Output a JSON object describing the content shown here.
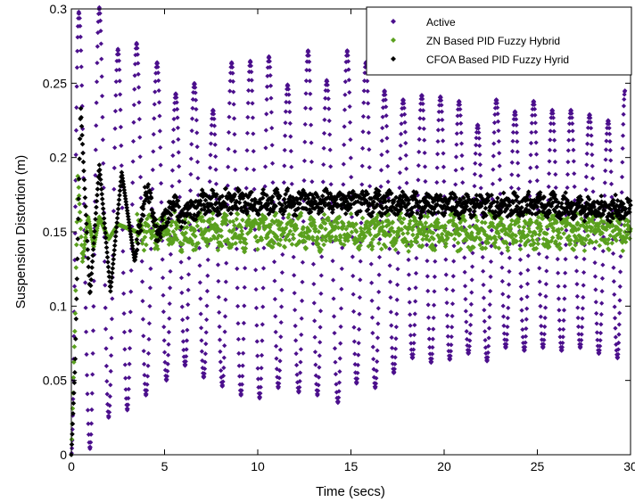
{
  "chart_data": {
    "type": "scatter",
    "title": "",
    "xlabel": "Time (secs)",
    "ylabel": "Suspension Distortion (m)",
    "xlim": [
      0,
      30
    ],
    "ylim": [
      0,
      0.3
    ],
    "xticks": [
      0,
      5,
      10,
      15,
      20,
      25,
      30
    ],
    "yticks": [
      0,
      0.05,
      0.1,
      0.15,
      0.2,
      0.25,
      0.3
    ],
    "xtick_labels": [
      "0",
      "5",
      "10",
      "15",
      "20",
      "25",
      "30"
    ],
    "ytick_labels": [
      "0",
      "0.05",
      "0.1",
      "0.15",
      "0.2",
      "0.25",
      "0.3"
    ],
    "grid": false,
    "legend_position": "top-right",
    "series": [
      {
        "name": "Active",
        "color": "#4b0f8c",
        "marker": "diamond",
        "peaks": [
          [
            0.4,
            0.298
          ],
          [
            1.5,
            0.301
          ],
          [
            2.5,
            0.273
          ],
          [
            3.5,
            0.277
          ],
          [
            4.6,
            0.264
          ],
          [
            5.6,
            0.243
          ],
          [
            6.6,
            0.25
          ],
          [
            7.6,
            0.232
          ],
          [
            8.6,
            0.264
          ],
          [
            9.6,
            0.265
          ],
          [
            10.6,
            0.268
          ],
          [
            11.6,
            0.249
          ],
          [
            12.7,
            0.272
          ],
          [
            13.7,
            0.252
          ],
          [
            14.8,
            0.272
          ],
          [
            15.8,
            0.264
          ],
          [
            16.8,
            0.245
          ],
          [
            17.8,
            0.239
          ],
          [
            18.8,
            0.242
          ],
          [
            19.8,
            0.241
          ],
          [
            20.8,
            0.238
          ],
          [
            21.8,
            0.222
          ],
          [
            22.8,
            0.239
          ],
          [
            23.8,
            0.231
          ],
          [
            24.8,
            0.238
          ],
          [
            25.8,
            0.232
          ],
          [
            26.8,
            0.232
          ],
          [
            27.8,
            0.229
          ],
          [
            28.8,
            0.225
          ],
          [
            29.7,
            0.245
          ]
        ],
        "troughs": [
          [
            0,
            0.0
          ],
          [
            1.0,
            0.004
          ],
          [
            2.0,
            0.025
          ],
          [
            3.0,
            0.03
          ],
          [
            4.0,
            0.04
          ],
          [
            5.1,
            0.05
          ],
          [
            6.1,
            0.06
          ],
          [
            7.1,
            0.052
          ],
          [
            8.1,
            0.046
          ],
          [
            9.1,
            0.04
          ],
          [
            10.1,
            0.038
          ],
          [
            11.1,
            0.045
          ],
          [
            12.2,
            0.042
          ],
          [
            13.2,
            0.04
          ],
          [
            14.3,
            0.035
          ],
          [
            15.3,
            0.048
          ],
          [
            16.3,
            0.045
          ],
          [
            17.3,
            0.055
          ],
          [
            18.3,
            0.065
          ],
          [
            19.3,
            0.062
          ],
          [
            20.3,
            0.064
          ],
          [
            21.3,
            0.068
          ],
          [
            22.3,
            0.063
          ],
          [
            23.3,
            0.072
          ],
          [
            24.3,
            0.07
          ],
          [
            25.3,
            0.072
          ],
          [
            26.3,
            0.07
          ],
          [
            27.3,
            0.072
          ],
          [
            28.3,
            0.068
          ],
          [
            29.3,
            0.065
          ]
        ]
      },
      {
        "name": "ZN Based PID Fuzzy Hybrid",
        "color": "#5aa01e",
        "marker": "diamond",
        "points": [
          [
            0,
            0.0
          ],
          [
            0.2,
            0.09
          ],
          [
            0.35,
            0.19
          ],
          [
            0.6,
            0.13
          ],
          [
            0.9,
            0.16
          ],
          [
            1.2,
            0.14
          ],
          [
            1.5,
            0.16
          ],
          [
            2.0,
            0.145
          ],
          [
            2.5,
            0.155
          ],
          [
            3.5,
            0.15
          ],
          [
            5,
            0.15
          ],
          [
            10,
            0.15
          ],
          [
            15,
            0.15
          ],
          [
            20,
            0.15
          ],
          [
            25,
            0.15
          ],
          [
            30,
            0.15
          ]
        ],
        "noise_amplitude": 0.01
      },
      {
        "name": "CFOA Based PID Fuzzy Hyrid",
        "color": "#000000",
        "marker": "diamond",
        "points": [
          [
            0,
            0.0
          ],
          [
            0.2,
            0.06
          ],
          [
            0.5,
            0.235
          ],
          [
            0.75,
            0.17
          ],
          [
            1.0,
            0.107
          ],
          [
            1.5,
            0.195
          ],
          [
            2.1,
            0.11
          ],
          [
            2.7,
            0.19
          ],
          [
            3.4,
            0.13
          ],
          [
            4.0,
            0.18
          ],
          [
            4.7,
            0.145
          ],
          [
            5.3,
            0.17
          ],
          [
            6.0,
            0.16
          ],
          [
            7.0,
            0.17
          ],
          [
            10,
            0.17
          ],
          [
            15,
            0.17
          ],
          [
            20,
            0.168
          ],
          [
            25,
            0.168
          ],
          [
            30,
            0.165
          ]
        ],
        "noise_amplitude": 0.007
      }
    ]
  }
}
